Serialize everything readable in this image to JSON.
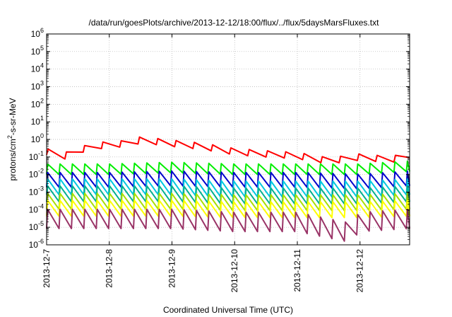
{
  "chart_data": {
    "type": "line",
    "title": "/data/run/goesPlots/archive/2013-12-12/18:00/flux/../flux/5daysMarsFluxes.txt",
    "xlabel": "Coordinated Universal Time (UTC)",
    "ylabel": {
      "main": "protons/cm",
      "sup": "2",
      "rest": "-s-sr-MeV"
    },
    "y_scale": "log",
    "ylim": [
      1e-06,
      1000000.0
    ],
    "y_ticks": [
      {
        "value": 1e-06,
        "label": "10",
        "exp": "-6"
      },
      {
        "value": 1e-05,
        "label": "10",
        "exp": "-5"
      },
      {
        "value": 0.0001,
        "label": "10",
        "exp": "-4"
      },
      {
        "value": 0.001,
        "label": "10",
        "exp": "-3"
      },
      {
        "value": 0.01,
        "label": "10",
        "exp": "-2"
      },
      {
        "value": 0.1,
        "label": "10",
        "exp": "-1"
      },
      {
        "value": 1,
        "label": "10",
        "exp": "0"
      },
      {
        "value": 10,
        "label": "10",
        "exp": "1"
      },
      {
        "value": 100,
        "label": "10",
        "exp": "2"
      },
      {
        "value": 1000,
        "label": "10",
        "exp": "3"
      },
      {
        "value": 10000,
        "label": "10",
        "exp": "4"
      },
      {
        "value": 100000,
        "label": "10",
        "exp": "5"
      },
      {
        "value": 1000000,
        "label": "10",
        "exp": "6"
      }
    ],
    "xlim": [
      "2013-12-07",
      "2013-12-12T19:00"
    ],
    "x_ticks": [
      "2013-12-7",
      "2013-12-8",
      "2013-12-9",
      "2013-12-10",
      "2013-12-11",
      "2013-12-12"
    ],
    "grid": true,
    "colors": {
      "red": "#ff0000",
      "green": "#00ee00",
      "blue": "#0000cc",
      "cyan": "#00c8e0",
      "teal": "#00b090",
      "lime": "#a8e000",
      "yellow": "#ffff00",
      "purple": "#993366"
    },
    "series": [
      {
        "color_key": "red",
        "values": [
          {
            "x": "2013-12-07T00:00",
            "y": 0.2
          },
          {
            "x": "2013-12-07T06:00",
            "y": 0.1
          },
          {
            "x": "2013-12-07T12:00",
            "y": 0.25
          },
          {
            "x": "2013-12-08T00:00",
            "y": 0.55
          },
          {
            "x": "2013-12-08T08:00",
            "y": 0.55
          },
          {
            "x": "2013-12-08T12:00",
            "y": 0.95
          },
          {
            "x": "2013-12-09T00:00",
            "y": 0.6
          },
          {
            "x": "2013-12-09T12:00",
            "y": 0.4
          },
          {
            "x": "2013-12-10T00:00",
            "y": 0.2
          },
          {
            "x": "2013-12-10T12:00",
            "y": 0.15
          },
          {
            "x": "2013-12-11T00:00",
            "y": 0.12
          },
          {
            "x": "2013-12-11T12:00",
            "y": 0.06
          },
          {
            "x": "2013-12-12T00:00",
            "y": 0.1
          },
          {
            "x": "2013-12-12T12:00",
            "y": 0.07
          },
          {
            "x": "2013-12-12T19:00",
            "y": 0.14
          }
        ]
      },
      {
        "color_key": "green",
        "values": [
          {
            "x": "2013-12-07T00:00",
            "y": 0.02
          },
          {
            "x": "2013-12-08T00:00",
            "y": 0.02
          },
          {
            "x": "2013-12-09T00:00",
            "y": 0.025
          },
          {
            "x": "2013-12-10T00:00",
            "y": 0.02
          },
          {
            "x": "2013-12-11T00:00",
            "y": 0.02
          },
          {
            "x": "2013-12-12T00:00",
            "y": 0.02
          },
          {
            "x": "2013-12-12T19:00",
            "y": 0.03
          }
        ]
      },
      {
        "color_key": "blue",
        "values": [
          {
            "x": "2013-12-07T00:00",
            "y": 0.005
          },
          {
            "x": "2013-12-08T00:00",
            "y": 0.005
          },
          {
            "x": "2013-12-09T00:00",
            "y": 0.006
          },
          {
            "x": "2013-12-10T00:00",
            "y": 0.005
          },
          {
            "x": "2013-12-11T00:00",
            "y": 0.005
          },
          {
            "x": "2013-12-12T00:00",
            "y": 0.004
          },
          {
            "x": "2013-12-12T19:00",
            "y": 0.006
          }
        ]
      },
      {
        "color_key": "cyan",
        "values": [
          {
            "x": "2013-12-07T00:00",
            "y": 0.002
          },
          {
            "x": "2013-12-08T00:00",
            "y": 0.002
          },
          {
            "x": "2013-12-09T00:00",
            "y": 0.002
          },
          {
            "x": "2013-12-10T00:00",
            "y": 0.0015
          },
          {
            "x": "2013-12-11T00:00",
            "y": 0.0015
          },
          {
            "x": "2013-12-12T00:00",
            "y": 0.0015
          },
          {
            "x": "2013-12-12T19:00",
            "y": 0.002
          }
        ]
      },
      {
        "color_key": "teal",
        "values": [
          {
            "x": "2013-12-07T00:00",
            "y": 0.0008
          },
          {
            "x": "2013-12-08T00:00",
            "y": 0.0008
          },
          {
            "x": "2013-12-09T00:00",
            "y": 0.0008
          },
          {
            "x": "2013-12-10T00:00",
            "y": 0.0006
          },
          {
            "x": "2013-12-11T00:00",
            "y": 0.0006
          },
          {
            "x": "2013-12-12T00:00",
            "y": 0.0006
          },
          {
            "x": "2013-12-12T19:00",
            "y": 0.0008
          }
        ]
      },
      {
        "color_key": "lime",
        "values": [
          {
            "x": "2013-12-07T00:00",
            "y": 0.0003
          },
          {
            "x": "2013-12-08T00:00",
            "y": 0.0003
          },
          {
            "x": "2013-12-09T00:00",
            "y": 0.0003
          },
          {
            "x": "2013-12-10T00:00",
            "y": 0.00025
          },
          {
            "x": "2013-12-11T00:00",
            "y": 0.00025
          },
          {
            "x": "2013-12-12T00:00",
            "y": 0.00025
          },
          {
            "x": "2013-12-12T19:00",
            "y": 0.0003
          }
        ]
      },
      {
        "color_key": "yellow",
        "values": [
          {
            "x": "2013-12-07T00:00",
            "y": 0.00012
          },
          {
            "x": "2013-12-08T00:00",
            "y": 0.00012
          },
          {
            "x": "2013-12-09T00:00",
            "y": 0.00012
          },
          {
            "x": "2013-12-10T00:00",
            "y": 0.0001
          },
          {
            "x": "2013-12-11T00:00",
            "y": 0.0001
          },
          {
            "x": "2013-12-12T00:00",
            "y": 0.0001
          },
          {
            "x": "2013-12-12T19:00",
            "y": 0.00012
          }
        ]
      },
      {
        "color_key": "purple",
        "values": [
          {
            "x": "2013-12-07T00:00",
            "y": 3e-05
          },
          {
            "x": "2013-12-08T00:00",
            "y": 3e-05
          },
          {
            "x": "2013-12-09T00:00",
            "y": 3e-05
          },
          {
            "x": "2013-12-10T00:00",
            "y": 2e-05
          },
          {
            "x": "2013-12-11T00:00",
            "y": 2e-05
          },
          {
            "x": "2013-12-11T20:00",
            "y": 5e-06
          },
          {
            "x": "2013-12-12T00:00",
            "y": 2e-05
          },
          {
            "x": "2013-12-12T19:00",
            "y": 3e-05
          }
        ]
      }
    ]
  }
}
